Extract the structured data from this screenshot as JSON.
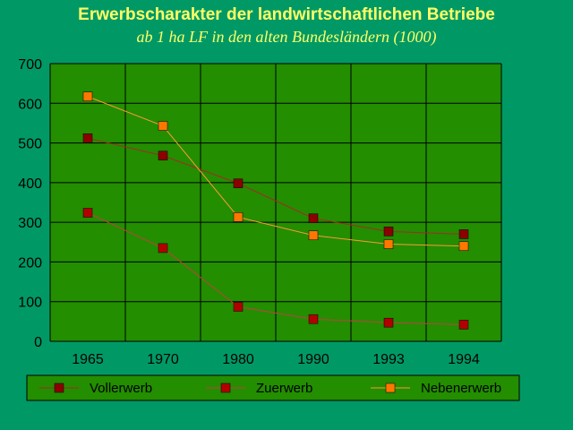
{
  "chart_data": {
    "type": "line",
    "title": "Erwerbscharakter der landwirtschaftlichen Betriebe",
    "subtitle": "ab 1 ha LF in den alten Bundesländern (1000)",
    "categories": [
      "1965",
      "1970",
      "1980",
      "1990",
      "1993",
      "1994"
    ],
    "series": [
      {
        "name": "Vollerwerb",
        "values": [
          512,
          468,
          398,
          310,
          277,
          270
        ],
        "color": "#8b0000",
        "line_color": "#a52a2a"
      },
      {
        "name": "Zuerwerb",
        "values": [
          324,
          235,
          87,
          56,
          47,
          42
        ],
        "color": "#b20000",
        "line_color": "#c04040"
      },
      {
        "name": "Nebenerwerb",
        "values": [
          617,
          543,
          313,
          267,
          245,
          240
        ],
        "color": "#ff7700",
        "line_color": "#ff9933"
      }
    ],
    "ylim": [
      0,
      700
    ],
    "yticks": [
      "0",
      "100",
      "200",
      "300",
      "400",
      "500",
      "600",
      "700"
    ],
    "grid": true,
    "legend": "bottom",
    "plot_background": "#238e00",
    "page_background": "#009966"
  }
}
